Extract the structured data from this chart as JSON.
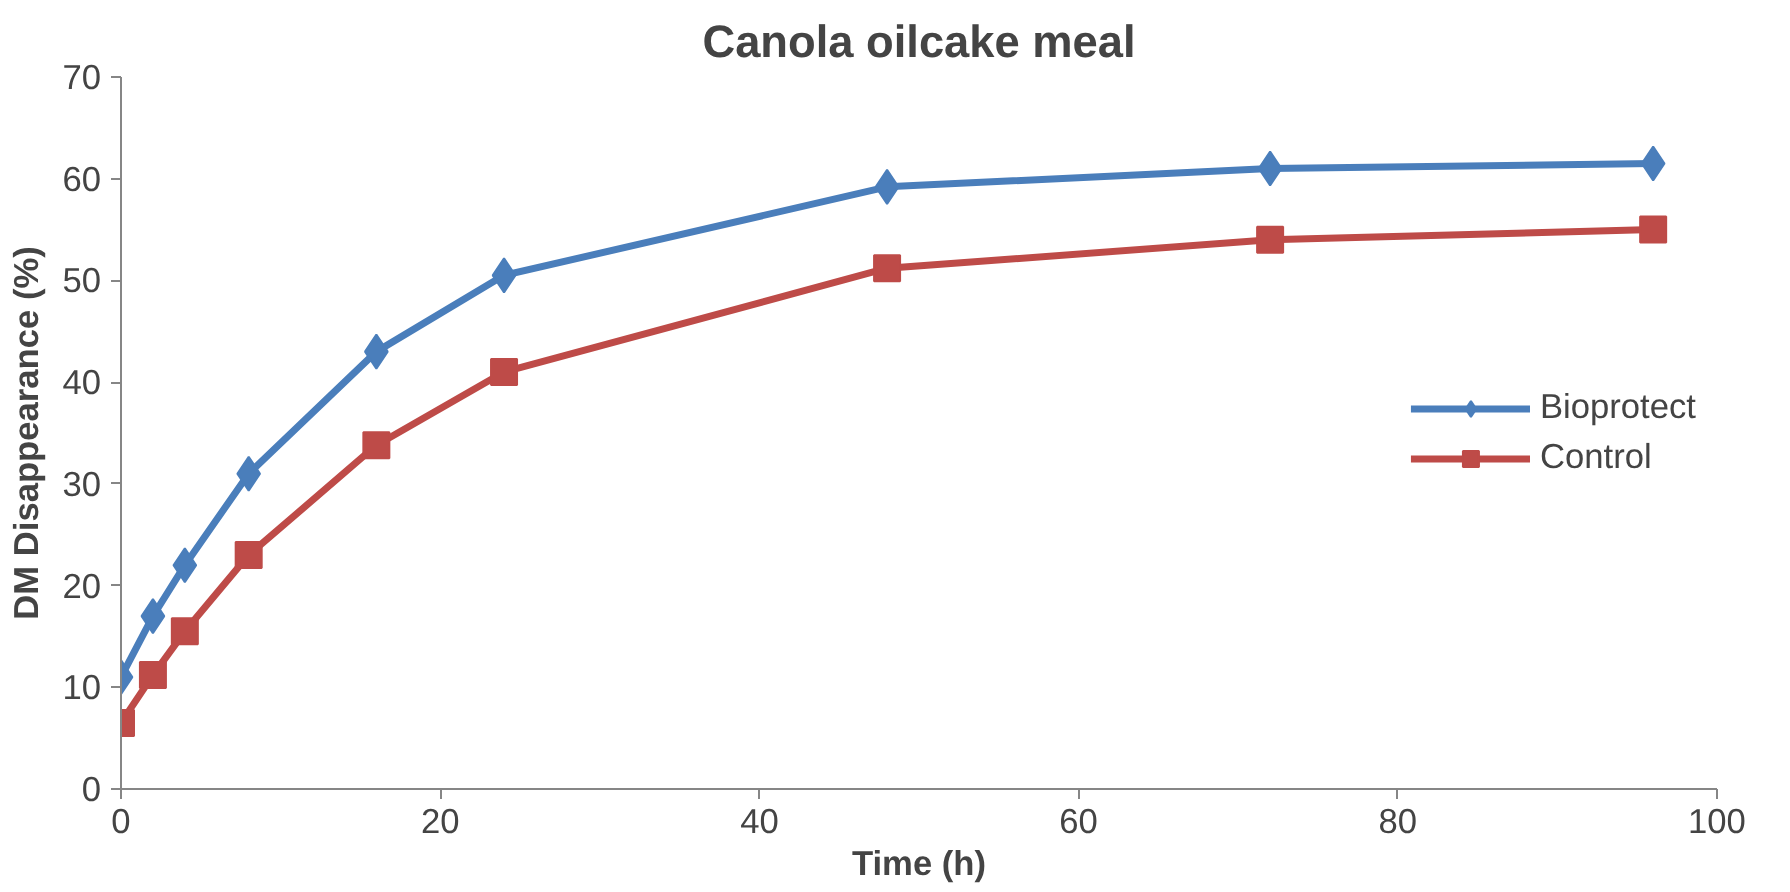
{
  "chart_data": {
    "type": "line",
    "title": "Canola oilcake meal",
    "xlabel": "Time (h)",
    "ylabel": "DM Disappearance (%)",
    "x": [
      0,
      2,
      4,
      8,
      16,
      24,
      48,
      72,
      96
    ],
    "series": [
      {
        "name": "Bioprotect",
        "color": "#4a7ebb",
        "marker": "diamond",
        "values": [
          11,
          17,
          22,
          31,
          43,
          50.5,
          59.2,
          61,
          61.5
        ]
      },
      {
        "name": "Control",
        "color": "#be4b48",
        "marker": "square",
        "values": [
          6.5,
          11.2,
          15.5,
          23,
          33.8,
          41,
          51.2,
          54,
          55
        ]
      }
    ],
    "xlim": [
      0,
      100
    ],
    "xticks": [
      0,
      20,
      40,
      60,
      80,
      100
    ],
    "ylim": [
      0,
      70
    ],
    "yticks": [
      0,
      10,
      20,
      30,
      40,
      50,
      60,
      70
    ],
    "grid": false,
    "legend": "right",
    "line_style": "solid"
  }
}
